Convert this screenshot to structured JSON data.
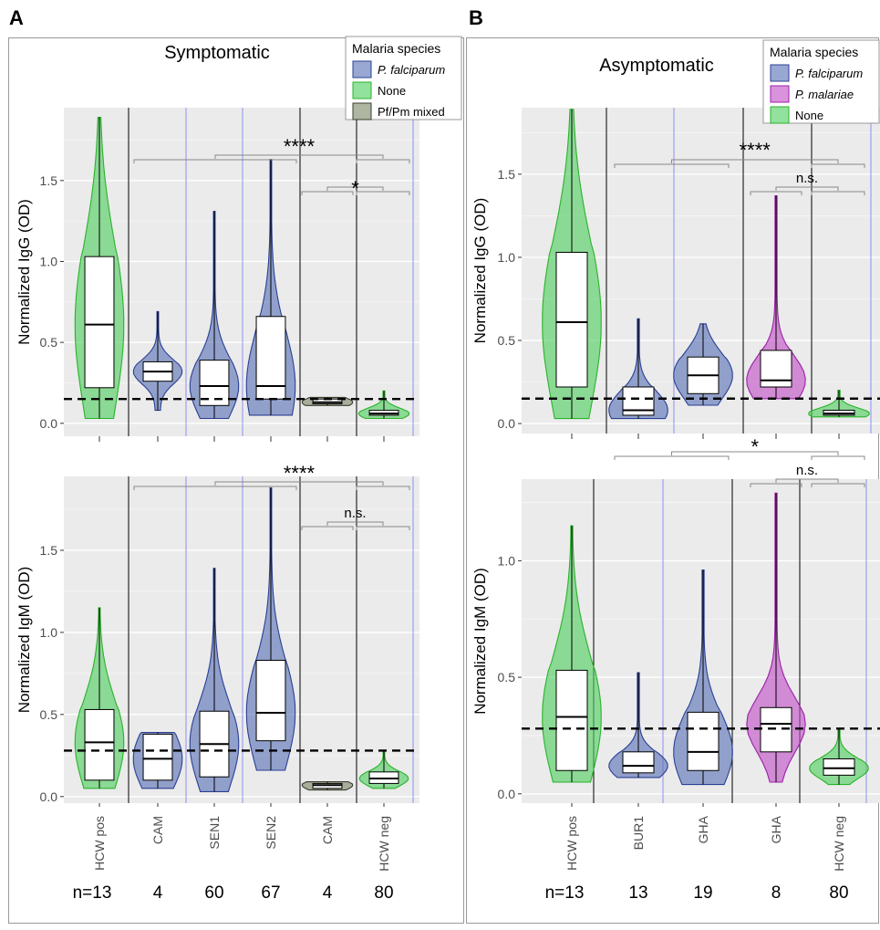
{
  "panels": [
    {
      "letter": "A",
      "title": "Symptomatic"
    },
    {
      "letter": "B",
      "title": "Asymptomatic"
    }
  ],
  "colors": {
    "P. falciparum": "#5b72b6",
    "None": "#4fcf5f",
    "Pf/Pm mixed": "#7d8868",
    "P. malariae": "#c24fc6"
  },
  "chart_data": [
    {
      "type": "violin",
      "panel": "A",
      "subplot": "top",
      "title": "Symptomatic",
      "ylabel": "Normalized IgG (OD)",
      "ylim": [
        -0.08,
        1.95
      ],
      "yticks": [
        0.0,
        0.5,
        1.0,
        1.5
      ],
      "threshold": 0.15,
      "categories": [
        "HCW pos",
        "CAM",
        "SEN1",
        "SEN2",
        "CAM",
        "HCW neg"
      ],
      "species": [
        "None",
        "P. falciparum",
        "P. falciparum",
        "P. falciparum",
        "Pf/Pm mixed",
        "None"
      ],
      "groups": [
        {
          "min": 0.03,
          "q1": 0.22,
          "median": 0.61,
          "q3": 1.03,
          "max": 1.89
        },
        {
          "min": 0.08,
          "q1": 0.26,
          "median": 0.32,
          "q3": 0.38,
          "max": 0.69
        },
        {
          "min": 0.03,
          "q1": 0.11,
          "median": 0.23,
          "q3": 0.39,
          "max": 1.31
        },
        {
          "min": 0.05,
          "q1": 0.15,
          "median": 0.23,
          "q3": 0.66,
          "max": 1.63
        },
        {
          "min": 0.11,
          "q1": 0.12,
          "median": 0.13,
          "q3": 0.15,
          "max": 0.16
        },
        {
          "min": 0.03,
          "q1": 0.05,
          "median": 0.06,
          "q3": 0.08,
          "max": 0.2
        }
      ],
      "legend": {
        "title": "Malaria species",
        "entries": [
          "P. falciparum",
          "None",
          "Pf/Pm mixed"
        ]
      },
      "significance": [
        {
          "label": "****",
          "groups": [
            "CAM",
            "SEN1",
            "SEN2"
          ],
          "vs": "HCW neg"
        },
        {
          "label": "*",
          "groups": [
            "CAM (Pf/Pm mixed)"
          ],
          "vs": "HCW neg"
        }
      ]
    },
    {
      "type": "violin",
      "panel": "A",
      "subplot": "bottom",
      "ylabel": "Normalized IgM (OD)",
      "ylim": [
        -0.04,
        1.95
      ],
      "yticks": [
        0.0,
        0.5,
        1.0,
        1.5
      ],
      "threshold": 0.28,
      "categories": [
        "HCW pos",
        "CAM",
        "SEN1",
        "SEN2",
        "CAM",
        "HCW neg"
      ],
      "species": [
        "None",
        "P. falciparum",
        "P. falciparum",
        "P. falciparum",
        "Pf/Pm mixed",
        "None"
      ],
      "groups": [
        {
          "min": 0.05,
          "q1": 0.1,
          "median": 0.33,
          "q3": 0.53,
          "max": 1.15
        },
        {
          "min": 0.05,
          "q1": 0.1,
          "median": 0.23,
          "q3": 0.38,
          "max": 0.39
        },
        {
          "min": 0.03,
          "q1": 0.12,
          "median": 0.32,
          "q3": 0.52,
          "max": 1.39
        },
        {
          "min": 0.16,
          "q1": 0.34,
          "median": 0.51,
          "q3": 0.83,
          "max": 1.88
        },
        {
          "min": 0.04,
          "q1": 0.05,
          "median": 0.07,
          "q3": 0.08,
          "max": 0.09
        },
        {
          "min": 0.05,
          "q1": 0.08,
          "median": 0.11,
          "q3": 0.15,
          "max": 0.28
        }
      ],
      "significance": [
        {
          "label": "****",
          "groups": [
            "CAM",
            "SEN1",
            "SEN2"
          ],
          "vs": "HCW neg"
        },
        {
          "label": "n.s.",
          "groups": [
            "CAM (Pf/Pm mixed)"
          ],
          "vs": "HCW neg"
        }
      ],
      "n": [
        "n=13",
        "4",
        "60",
        "67",
        "4",
        "80"
      ]
    },
    {
      "type": "violin",
      "panel": "B",
      "subplot": "top",
      "title": "Asymptomatic",
      "ylabel": "Normalized IgG (OD)",
      "ylim": [
        -0.06,
        1.9
      ],
      "yticks": [
        0.0,
        0.5,
        1.0,
        1.5
      ],
      "threshold": 0.15,
      "categories": [
        "HCW pos",
        "BUR1",
        "GHA",
        "GHA",
        "HCW neg"
      ],
      "species": [
        "None",
        "P. falciparum",
        "P. falciparum",
        "P. malariae",
        "None"
      ],
      "groups": [
        {
          "min": 0.03,
          "q1": 0.22,
          "median": 0.61,
          "q3": 1.03,
          "max": 1.89
        },
        {
          "min": 0.03,
          "q1": 0.05,
          "median": 0.08,
          "q3": 0.22,
          "max": 0.63
        },
        {
          "min": 0.11,
          "q1": 0.18,
          "median": 0.29,
          "q3": 0.4,
          "max": 0.6
        },
        {
          "min": 0.15,
          "q1": 0.22,
          "median": 0.26,
          "q3": 0.44,
          "max": 1.37
        },
        {
          "min": 0.04,
          "q1": 0.05,
          "median": 0.06,
          "q3": 0.08,
          "max": 0.2
        }
      ],
      "legend": {
        "title": "Malaria species",
        "entries": [
          "P. falciparum",
          "P. malariae",
          "None"
        ]
      },
      "significance": [
        {
          "label": "****",
          "groups": [
            "BUR1",
            "GHA"
          ],
          "vs": "HCW neg"
        },
        {
          "label": "n.s.",
          "groups": [
            "GHA (P. malariae)"
          ],
          "vs": "HCW neg"
        }
      ]
    },
    {
      "type": "violin",
      "panel": "B",
      "subplot": "bottom",
      "ylabel": "Normalized IgM (OD)",
      "ylim": [
        -0.04,
        1.35
      ],
      "yticks": [
        0.0,
        0.5,
        1.0
      ],
      "threshold": 0.28,
      "categories": [
        "HCW pos",
        "BUR1",
        "GHA",
        "GHA",
        "HCW neg"
      ],
      "species": [
        "None",
        "P. falciparum",
        "P. falciparum",
        "P. malariae",
        "None"
      ],
      "groups": [
        {
          "min": 0.05,
          "q1": 0.1,
          "median": 0.33,
          "q3": 0.53,
          "max": 1.15
        },
        {
          "min": 0.07,
          "q1": 0.09,
          "median": 0.12,
          "q3": 0.18,
          "max": 0.52
        },
        {
          "min": 0.04,
          "q1": 0.1,
          "median": 0.18,
          "q3": 0.35,
          "max": 0.96
        },
        {
          "min": 0.05,
          "q1": 0.18,
          "median": 0.3,
          "q3": 0.37,
          "max": 1.29
        },
        {
          "min": 0.04,
          "q1": 0.08,
          "median": 0.11,
          "q3": 0.15,
          "max": 0.28
        }
      ],
      "significance": [
        {
          "label": "*",
          "groups": [
            "BUR1",
            "GHA"
          ],
          "vs": "HCW neg"
        },
        {
          "label": "n.s.",
          "groups": [
            "GHA (P. malariae)"
          ],
          "vs": "HCW neg"
        }
      ],
      "n": [
        "n=13",
        "13",
        "19",
        "8",
        "80"
      ]
    }
  ]
}
